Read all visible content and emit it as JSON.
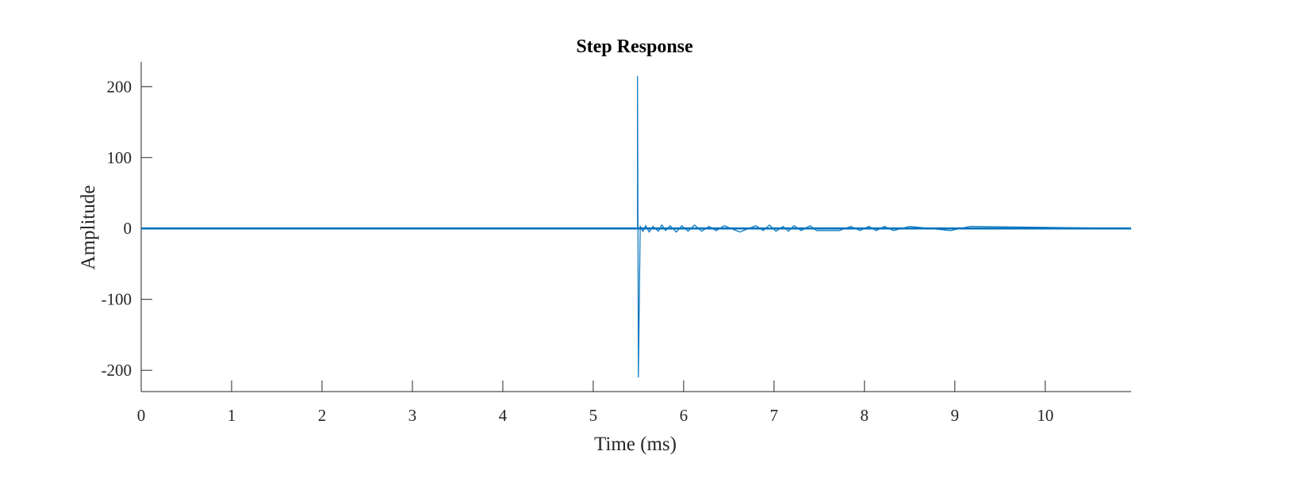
{
  "chart_data": {
    "type": "line",
    "title": "Step Response",
    "xlabel": "Time (ms)",
    "ylabel": "Amplitude",
    "xlim": [
      0,
      10.95
    ],
    "ylim": [
      -230,
      235
    ],
    "xticks": [
      0,
      1,
      2,
      3,
      4,
      5,
      6,
      7,
      8,
      9,
      10
    ],
    "yticks": [
      200,
      100,
      0,
      -100,
      -200
    ],
    "grid": false,
    "legend": "none",
    "series": [
      {
        "color": "#0072BD",
        "x": [
          0,
          5.49,
          5.49,
          5.5,
          5.52,
          5.55,
          5.58,
          5.62,
          5.66,
          5.72,
          5.76,
          5.8,
          5.85,
          5.92,
          5.98,
          6.05,
          6.12,
          6.2,
          6.28,
          6.36,
          6.45,
          6.62,
          6.8,
          6.88,
          6.95,
          7.02,
          7.1,
          7.16,
          7.22,
          7.3,
          7.4,
          7.47,
          7.72,
          7.85,
          7.95,
          8.05,
          8.13,
          8.22,
          8.32,
          8.5,
          8.95,
          9.17,
          10.95
        ],
        "y": [
          0,
          0,
          215,
          -210,
          3,
          -4,
          4,
          -5,
          3,
          -4,
          5,
          -3,
          4,
          -5,
          4,
          -4,
          5,
          -4,
          3,
          -3,
          4,
          -5,
          4,
          -3,
          5,
          -4,
          3,
          -4,
          4,
          -3,
          4,
          -3,
          -3,
          3,
          -3,
          3,
          -3,
          3,
          -3,
          3,
          -3,
          3,
          0
        ]
      }
    ]
  }
}
